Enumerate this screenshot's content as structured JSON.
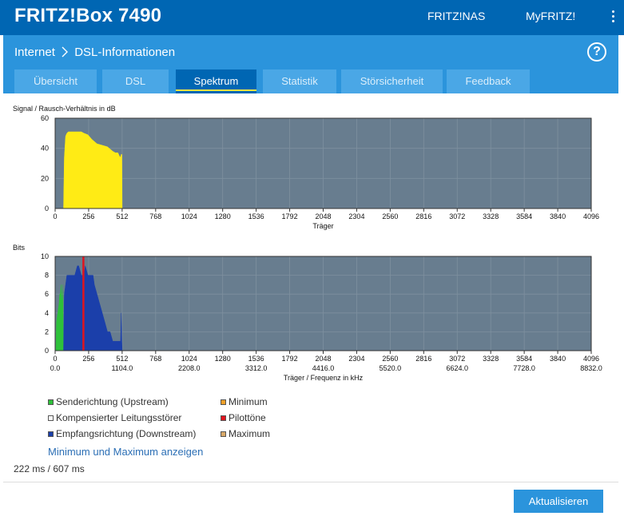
{
  "header": {
    "brand": "FRITZ!Box 7490",
    "links": [
      "FRITZ!NAS",
      "MyFRITZ!"
    ],
    "menu_icon": "kebab-menu-icon"
  },
  "subheader": {
    "breadcrumb": [
      "Internet",
      "DSL-Informationen"
    ],
    "breadcrumb_separator_icon": "chevron-right-icon",
    "help_icon_text": "?"
  },
  "tabs": [
    {
      "label": "Übersicht",
      "active": false
    },
    {
      "label": "DSL",
      "active": false
    },
    {
      "label": "Spektrum",
      "active": true
    },
    {
      "label": "Statistik",
      "active": false
    },
    {
      "label": "Störsicherheit",
      "active": false
    },
    {
      "label": "Feedback",
      "active": false
    }
  ],
  "snr_chart": {
    "title": "Signal / Rausch-Verhältnis in dB",
    "xlabel": "Träger"
  },
  "bits_chart": {
    "title": "Bits",
    "xlabel": "Träger / Frequenz in kHz"
  },
  "chart_data": [
    {
      "type": "area",
      "title": "Signal / Rausch-Verhältnis in dB",
      "xlabel": "Träger",
      "ylabel": "",
      "xlim": [
        0,
        4096
      ],
      "ylim": [
        0,
        60
      ],
      "xticks": [
        0,
        256,
        512,
        768,
        1024,
        1280,
        1536,
        1792,
        2048,
        2304,
        2560,
        2816,
        3072,
        3328,
        3584,
        3840,
        4096
      ],
      "yticks": [
        0,
        20,
        40,
        60
      ],
      "grid": true,
      "series": [
        {
          "color": "#ffeb15",
          "x": [
            64,
            70,
            80,
            90,
            100,
            120,
            150,
            180,
            200,
            220,
            250,
            280,
            320,
            360,
            400,
            440,
            460,
            480,
            490,
            500,
            505,
            510,
            512
          ],
          "y": [
            0,
            34,
            48,
            50,
            51,
            51,
            51,
            51,
            51,
            50,
            49,
            46,
            43,
            42,
            41,
            38,
            37,
            37,
            35,
            34,
            36,
            36,
            0
          ]
        }
      ]
    },
    {
      "type": "area",
      "title": "Bits",
      "xlabel": "Träger / Frequenz in kHz",
      "ylabel": "",
      "xlim": [
        0,
        4096
      ],
      "ylim": [
        0,
        10
      ],
      "xticks": [
        0,
        256,
        512,
        768,
        1024,
        1280,
        1536,
        1792,
        2048,
        2304,
        2560,
        2816,
        3072,
        3328,
        3584,
        3840,
        4096
      ],
      "xticks_secondary": [
        "0.0",
        "1104.0",
        "2208.0",
        "3312.0",
        "4416.0",
        "5520.0",
        "6624.0",
        "7728.0",
        "8832.0"
      ],
      "yticks": [
        0,
        2,
        4,
        6,
        8,
        10
      ],
      "grid": true,
      "series": [
        {
          "name": "Senderichtung (Upstream)",
          "color": "#2ec13a",
          "x": [
            6,
            10,
            20,
            30,
            35,
            38,
            40,
            45,
            50,
            55,
            58,
            60,
            62
          ],
          "y": [
            0,
            3,
            4,
            5,
            6,
            6,
            6,
            7,
            6,
            5,
            6,
            7,
            0
          ]
        },
        {
          "name": "Empfangsrichtung (Downstream)",
          "color": "#1b3faa",
          "x": [
            64,
            70,
            80,
            90,
            100,
            120,
            150,
            170,
            180,
            200,
            220,
            230,
            250,
            260,
            290,
            300,
            320,
            340,
            360,
            380,
            400,
            420,
            440,
            460,
            480,
            500,
            505,
            510,
            512
          ],
          "y": [
            0,
            6,
            7,
            8,
            8,
            8,
            8,
            9,
            9,
            8,
            8,
            9,
            8,
            8,
            8,
            7,
            6,
            5,
            4,
            3,
            2,
            2,
            1,
            1,
            1,
            1,
            4,
            1,
            0
          ]
        },
        {
          "name": "Pilottöne",
          "color": "#e0141e",
          "x": [
            216
          ],
          "y": [
            10
          ]
        }
      ]
    }
  ],
  "legend": {
    "left": [
      {
        "label": "Senderichtung (Upstream)",
        "color": "#2ec13a"
      },
      {
        "label": "Kompensierter Leitungsstörer",
        "color": "#ffffff"
      },
      {
        "label": "Empfangsrichtung (Downstream)",
        "color": "#1b3faa"
      }
    ],
    "right": [
      {
        "label": "Minimum",
        "color": "#f0a029"
      },
      {
        "label": "Pilottöne",
        "color": "#e0141e"
      },
      {
        "label": "Maximum",
        "color": "#d8a868"
      }
    ]
  },
  "minmax_link": "Minimum und Maximum anzeigen",
  "timing": "222 ms / 607 ms",
  "refresh_button": "Aktualisieren",
  "colors": {
    "header_bg": "#0066b3",
    "subheader_bg": "#2b94dc",
    "tab_bg": "#4aa7e6",
    "plot_bg": "#687d8f",
    "accent_yellow": "#f4e542"
  }
}
